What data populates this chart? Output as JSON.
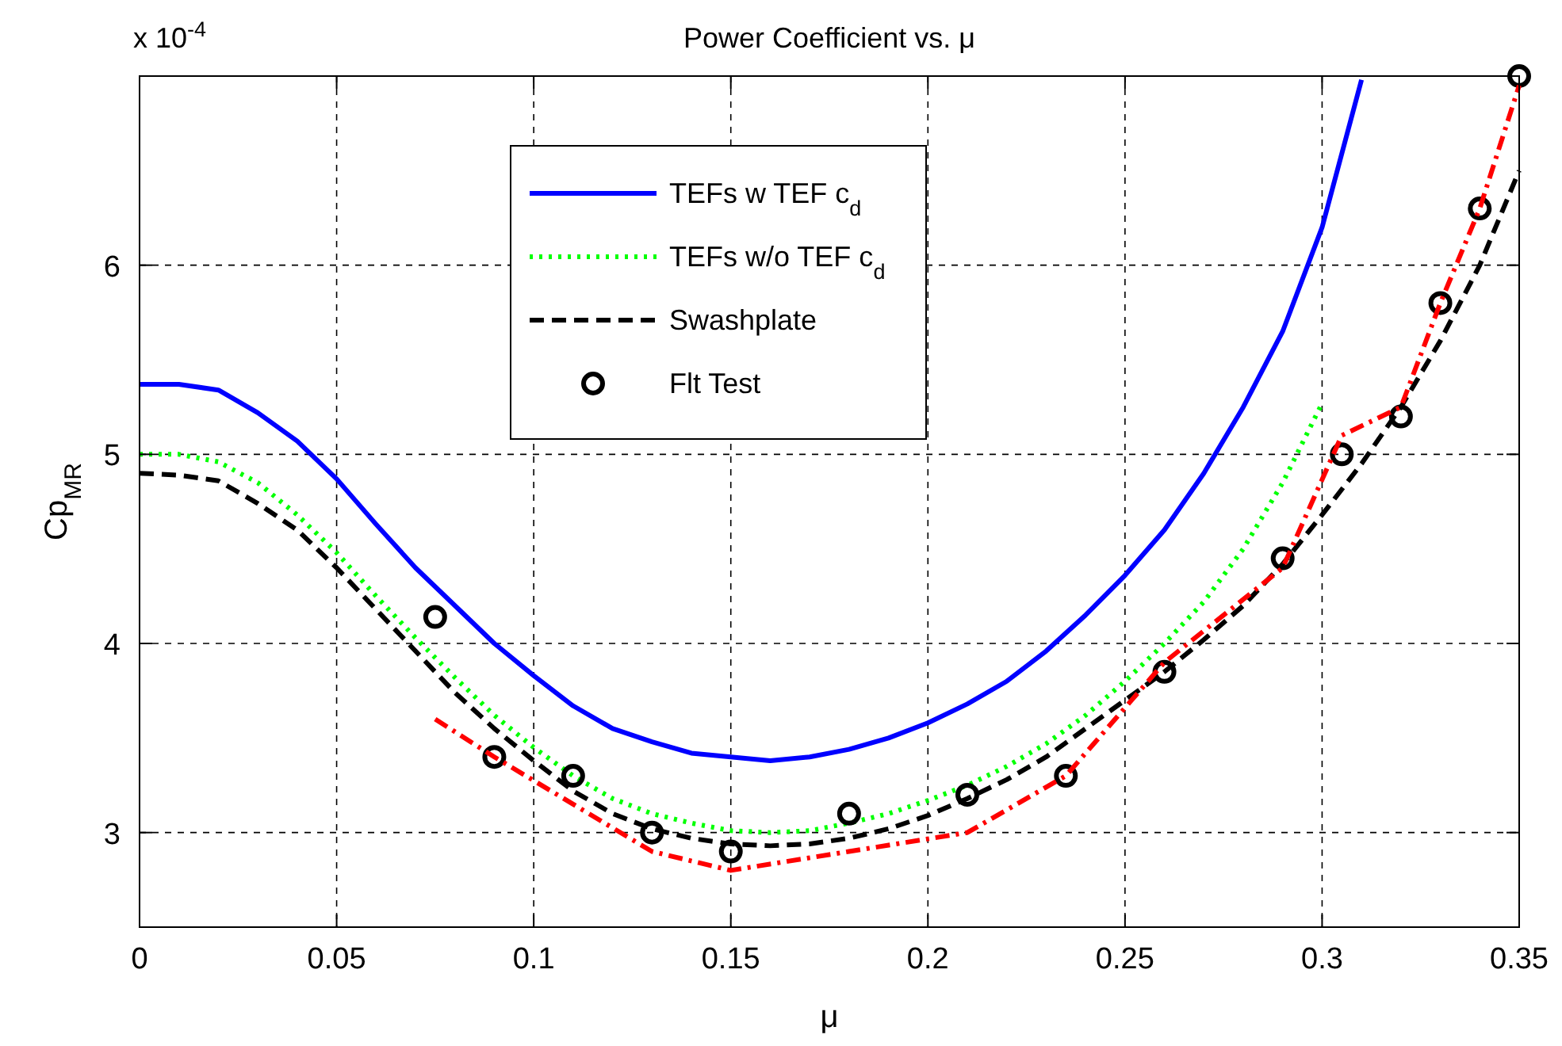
{
  "chart_data": {
    "type": "line",
    "title": "Power Coefficient vs. μ",
    "xlabel": "μ",
    "ylabel": "Cp$_{MR}$",
    "annotations": [
      "x 10$^{-4}$"
    ],
    "xlim": [
      0,
      0.35
    ],
    "xticks": [
      0,
      0.05,
      0.1,
      0.15,
      0.2,
      0.25,
      0.3,
      0.35
    ],
    "ylim": [
      2.5,
      7
    ],
    "yticks": [
      3,
      4,
      5,
      6
    ],
    "grid": true,
    "legend": "top",
    "series": [
      {
        "name": "TEFs w TEF c$_{d}$",
        "color": "#0000ff",
        "line_style": "solid",
        "marker": "none",
        "x": [
          0,
          0.01,
          0.02,
          0.03,
          0.04,
          0.05,
          0.06,
          0.07,
          0.08,
          0.09,
          0.1,
          0.11,
          0.12,
          0.13,
          0.14,
          0.15,
          0.16,
          0.17,
          0.18,
          0.19,
          0.2,
          0.21,
          0.22,
          0.23,
          0.24,
          0.25,
          0.26,
          0.27,
          0.28,
          0.29,
          0.3,
          0.31
        ],
        "values": [
          5.37,
          5.37,
          5.34,
          5.22,
          5.07,
          4.87,
          4.63,
          4.4,
          4.2,
          4.0,
          3.83,
          3.67,
          3.55,
          3.48,
          3.42,
          3.4,
          3.38,
          3.4,
          3.44,
          3.5,
          3.58,
          3.68,
          3.8,
          3.96,
          4.15,
          4.36,
          4.6,
          4.9,
          5.25,
          5.65,
          6.2,
          6.98
        ]
      },
      {
        "name": "TEFs w/o TEF c$_{d}$",
        "color": "#00ff00",
        "line_style": "dotted",
        "marker": "none",
        "x": [
          0,
          0.01,
          0.02,
          0.03,
          0.04,
          0.05,
          0.06,
          0.07,
          0.08,
          0.09,
          0.1,
          0.11,
          0.12,
          0.13,
          0.14,
          0.15,
          0.16,
          0.17,
          0.18,
          0.19,
          0.2,
          0.21,
          0.22,
          0.23,
          0.24,
          0.25,
          0.26,
          0.27,
          0.28,
          0.29,
          0.3
        ],
        "values": [
          5.0,
          5.0,
          4.96,
          4.85,
          4.68,
          4.48,
          4.25,
          4.03,
          3.82,
          3.62,
          3.45,
          3.3,
          3.18,
          3.1,
          3.05,
          3.01,
          3.0,
          3.01,
          3.05,
          3.1,
          3.17,
          3.25,
          3.35,
          3.47,
          3.62,
          3.8,
          4.0,
          4.22,
          4.5,
          4.85,
          5.27
        ]
      },
      {
        "name": "Swashplate",
        "color": "#000000",
        "line_style": "dashed",
        "marker": "none",
        "x": [
          0,
          0.01,
          0.02,
          0.03,
          0.04,
          0.05,
          0.06,
          0.07,
          0.08,
          0.09,
          0.1,
          0.11,
          0.12,
          0.13,
          0.14,
          0.15,
          0.16,
          0.17,
          0.18,
          0.19,
          0.2,
          0.21,
          0.22,
          0.23,
          0.24,
          0.25,
          0.26,
          0.27,
          0.28,
          0.29,
          0.3,
          0.31,
          0.32,
          0.33,
          0.34,
          0.35
        ],
        "values": [
          4.9,
          4.89,
          4.86,
          4.74,
          4.6,
          4.4,
          4.18,
          3.96,
          3.74,
          3.55,
          3.38,
          3.22,
          3.1,
          3.02,
          2.97,
          2.94,
          2.93,
          2.94,
          2.97,
          3.02,
          3.09,
          3.18,
          3.28,
          3.4,
          3.55,
          3.7,
          3.85,
          4.02,
          4.2,
          4.42,
          4.68,
          4.95,
          5.25,
          5.6,
          6.0,
          6.5
        ]
      },
      {
        "name": "Flt Test",
        "type": "scatter",
        "color": "#000000",
        "marker": "circle",
        "x": [
          0.075,
          0.09,
          0.11,
          0.13,
          0.15,
          0.18,
          0.21,
          0.235,
          0.26,
          0.29,
          0.305,
          0.32,
          0.33,
          0.34,
          0.35
        ],
        "values": [
          4.14,
          3.4,
          3.3,
          3.0,
          2.9,
          3.1,
          3.2,
          3.3,
          3.85,
          4.45,
          5.0,
          5.2,
          5.8,
          6.3,
          7.0
        ]
      },
      {
        "color": "#ff0000",
        "line_style": "dashdot",
        "marker": "none",
        "x": [
          0.075,
          0.09,
          0.11,
          0.13,
          0.15,
          0.18,
          0.21,
          0.235,
          0.26,
          0.29,
          0.305,
          0.32,
          0.33,
          0.34,
          0.35
        ],
        "values": [
          3.6,
          3.4,
          3.15,
          2.9,
          2.8,
          2.9,
          3.0,
          3.3,
          3.9,
          4.4,
          5.1,
          5.25,
          5.8,
          6.3,
          6.95
        ]
      }
    ]
  }
}
